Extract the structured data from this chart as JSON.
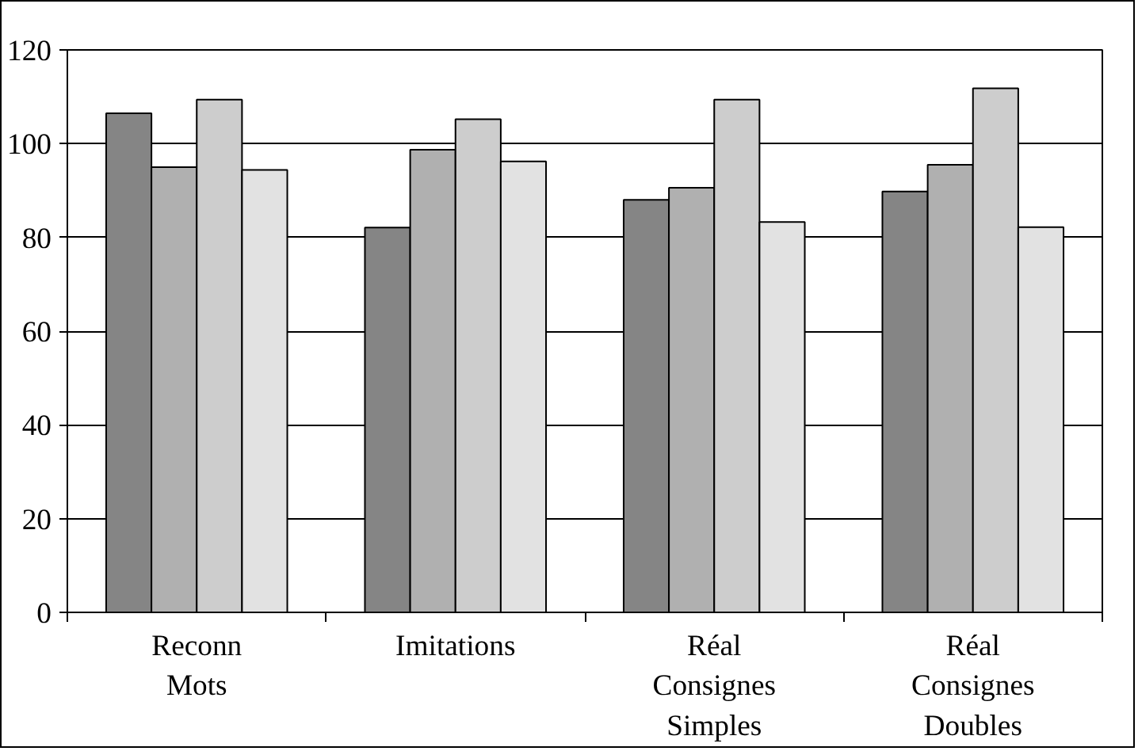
{
  "chart_data": {
    "type": "bar",
    "categories": [
      "Reconn\nMots",
      "Imitations",
      "Réal\nConsignes\nSimples",
      "Réal\nConsignes\nDoubles"
    ],
    "series": [
      {
        "color": "#858585",
        "values": [
          106.5,
          82.1,
          88.0,
          89.8
        ]
      },
      {
        "color": "#b0b0b0",
        "values": [
          95.0,
          98.7,
          90.6,
          95.5
        ]
      },
      {
        "color": "#cdcdcd",
        "values": [
          109.4,
          105.2,
          109.4,
          111.8
        ]
      },
      {
        "color": "#e2e2e2",
        "values": [
          94.4,
          96.2,
          83.3,
          82.2
        ]
      }
    ],
    "ylim": [
      0,
      120
    ],
    "yticks": [
      0,
      20,
      40,
      60,
      80,
      100,
      120
    ],
    "grid": "y"
  }
}
